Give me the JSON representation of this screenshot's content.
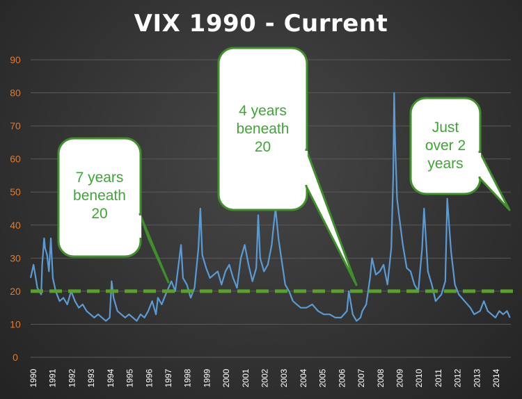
{
  "chart_data": {
    "type": "line",
    "title": "VIX 1990 - Current",
    "xlabel": "",
    "ylabel": "",
    "ylim": [
      0,
      90
    ],
    "xlim": [
      1990,
      2014.9
    ],
    "yticks": [
      "0",
      "10",
      "20",
      "30",
      "40",
      "50",
      "60",
      "70",
      "80",
      "90"
    ],
    "xticks": [
      "1990",
      "1991",
      "1992",
      "1993",
      "1994",
      "1995",
      "1996",
      "1997",
      "1998",
      "1999",
      "2000",
      "2001",
      "2002",
      "2003",
      "2004",
      "2005",
      "2006",
      "2007",
      "2008",
      "2009",
      "2010",
      "2011",
      "2012",
      "2013",
      "2014"
    ],
    "grid": "horizontal",
    "legend": "none",
    "series": [
      {
        "color": "#5b9bd5",
        "x": [
          1990.0,
          1990.15,
          1990.35,
          1990.55,
          1990.6,
          1990.7,
          1990.75,
          1990.85,
          1990.95,
          1991.05,
          1991.15,
          1991.3,
          1991.5,
          1991.7,
          1991.9,
          1992.1,
          1992.3,
          1992.5,
          1992.7,
          1992.9,
          1993.1,
          1993.3,
          1993.5,
          1993.7,
          1993.9,
          1994.1,
          1994.2,
          1994.3,
          1994.5,
          1994.7,
          1994.9,
          1995.1,
          1995.3,
          1995.5,
          1995.7,
          1995.9,
          1996.1,
          1996.3,
          1996.5,
          1996.6,
          1996.8,
          1997.0,
          1997.3,
          1997.5,
          1997.8,
          1997.9,
          1998.1,
          1998.3,
          1998.5,
          1998.7,
          1998.8,
          1998.9,
          1999.1,
          1999.3,
          1999.5,
          1999.7,
          1999.9,
          2000.1,
          2000.3,
          2000.5,
          2000.7,
          2000.9,
          2001.1,
          2001.3,
          2001.5,
          2001.7,
          2001.8,
          2001.9,
          2002.1,
          2002.3,
          2002.5,
          2002.6,
          2002.7,
          2002.85,
          2003.0,
          2003.2,
          2003.4,
          2003.6,
          2003.8,
          2004.0,
          2004.3,
          2004.6,
          2004.9,
          2005.2,
          2005.5,
          2005.8,
          2006.1,
          2006.4,
          2006.5,
          2006.7,
          2006.9,
          2007.1,
          2007.2,
          2007.4,
          2007.6,
          2007.7,
          2007.9,
          2008.1,
          2008.3,
          2008.5,
          2008.7,
          2008.8,
          2008.85,
          2008.9,
          2009.0,
          2009.1,
          2009.3,
          2009.5,
          2009.7,
          2009.9,
          2010.1,
          2010.3,
          2010.4,
          2010.6,
          2010.8,
          2011.0,
          2011.3,
          2011.5,
          2011.6,
          2011.7,
          2011.8,
          2012.0,
          2012.2,
          2012.5,
          2012.8,
          2013.0,
          2013.3,
          2013.5,
          2013.7,
          2013.9,
          2014.1,
          2014.3,
          2014.5,
          2014.7,
          2014.85
        ],
        "values": [
          24,
          28,
          21,
          19,
          28,
          36,
          33,
          31,
          26,
          36,
          24,
          20,
          17,
          18,
          16,
          20,
          17,
          15,
          16,
          14,
          13,
          12,
          13,
          12,
          11,
          12,
          23,
          18,
          14,
          13,
          12,
          13,
          12,
          11,
          13,
          12,
          14,
          17,
          13,
          18,
          16,
          19,
          23,
          20,
          34,
          24,
          22,
          18,
          21,
          33,
          45,
          31,
          27,
          24,
          25,
          26,
          22,
          26,
          28,
          24,
          21,
          30,
          34,
          28,
          23,
          27,
          43,
          30,
          26,
          28,
          34,
          40,
          45,
          36,
          30,
          22,
          20,
          17,
          16,
          15,
          15,
          16,
          14,
          13,
          13,
          12,
          12,
          14,
          20,
          13,
          11,
          12,
          14,
          16,
          24,
          30,
          25,
          26,
          28,
          22,
          33,
          55,
          80,
          65,
          48,
          43,
          34,
          27,
          26,
          22,
          20,
          33,
          45,
          26,
          22,
          17,
          19,
          23,
          48,
          40,
          32,
          22,
          19,
          17,
          15,
          13,
          14,
          17,
          14,
          13,
          12,
          14,
          13,
          14,
          12
        ]
      }
    ],
    "reference_lines": [
      {
        "y": 20,
        "style": "dashed",
        "color": "#5aa02c"
      }
    ],
    "annotations": [
      {
        "lines": [
          "7 years",
          "beneath",
          "20"
        ]
      },
      {
        "lines": [
          "4 years",
          "beneath",
          "20"
        ]
      },
      {
        "lines": [
          "Just",
          "over 2",
          "years"
        ]
      }
    ]
  }
}
